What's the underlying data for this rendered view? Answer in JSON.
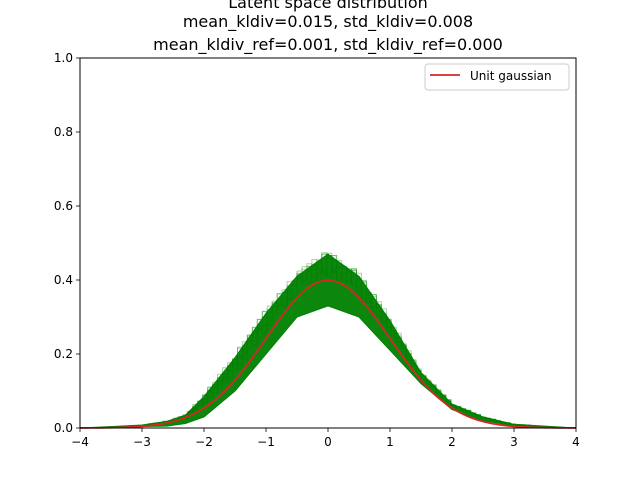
{
  "chart_data": {
    "type": "line",
    "title_lines": [
      "Latent space distribution",
      "mean_kldiv=0.015, std_kldiv=0.008",
      "mean_kldiv_ref=0.001, std_kldiv_ref=0.000"
    ],
    "xlabel": "",
    "ylabel": "",
    "xlim": [
      -4,
      4
    ],
    "ylim": [
      0,
      1
    ],
    "x_ticks": [
      -4,
      -3,
      -2,
      -1,
      0,
      1,
      2,
      3,
      4
    ],
    "x_tick_labels": [
      "−4",
      "−3",
      "−2",
      "−1",
      "0",
      "1",
      "2",
      "3",
      "4"
    ],
    "y_ticks": [
      0.0,
      0.2,
      0.4,
      0.6,
      0.8,
      1.0
    ],
    "y_tick_labels": [
      "0.0",
      "0.2",
      "0.4",
      "0.6",
      "0.8",
      "1.0"
    ],
    "grid": false,
    "legend_position": "top-right",
    "colors": {
      "histogram": "#008000",
      "reference": "#d62728"
    },
    "series": [
      {
        "name": "Unit gaussian",
        "kind": "line",
        "color": "#d62728",
        "x": [
          -4,
          -3.5,
          -3,
          -2.5,
          -2,
          -1.5,
          -1,
          -0.5,
          0,
          0.5,
          1,
          1.5,
          2,
          2.5,
          3,
          3.5,
          4
        ],
        "y": [
          0.0001,
          0.0009,
          0.0044,
          0.0175,
          0.054,
          0.1295,
          0.242,
          0.352,
          0.399,
          0.352,
          0.242,
          0.1295,
          0.054,
          0.0175,
          0.0044,
          0.0009,
          0.0001
        ]
      },
      {
        "kind": "histogram-band",
        "color": "#008000",
        "x": [
          -4,
          -3,
          -2.6,
          -2.3,
          -2.0,
          -1.5,
          -1.0,
          -0.5,
          0,
          0.5,
          1.0,
          1.5,
          2.0,
          2.5,
          3.0,
          4.0
        ],
        "y_low": [
          0.0,
          0.004,
          0.005,
          0.012,
          0.03,
          0.1,
          0.2,
          0.3,
          0.33,
          0.3,
          0.21,
          0.12,
          0.05,
          0.02,
          0.006,
          0.0
        ],
        "y_high": [
          0.0,
          0.008,
          0.018,
          0.035,
          0.085,
          0.19,
          0.31,
          0.41,
          0.47,
          0.41,
          0.29,
          0.15,
          0.065,
          0.03,
          0.01,
          0.0
        ]
      }
    ]
  }
}
